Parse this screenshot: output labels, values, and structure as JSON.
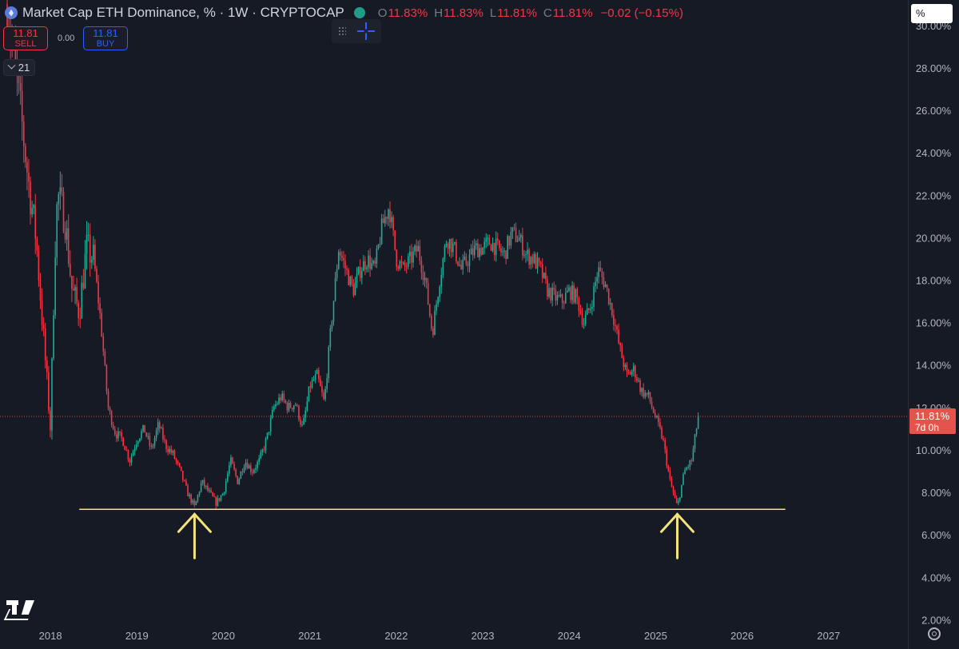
{
  "header": {
    "title": "Market Cap ETH Dominance, % · 1W · CRYPTOCAP",
    "open_label": "O",
    "open": "11.83%",
    "high_label": "H",
    "high": "11.83%",
    "low_label": "L",
    "low": "11.81%",
    "close_label": "C",
    "close": "11.81%",
    "change": "−0.02 (−0.15%)"
  },
  "trade": {
    "sell_price": "11.81",
    "sell_label": "SELL",
    "spread": "0.00",
    "buy_price": "11.81",
    "buy_label": "BUY"
  },
  "indicators_count": "21",
  "axis_unit": "%",
  "last_price_tag": {
    "value": "11.81%",
    "countdown": "7d 0h"
  },
  "colors": {
    "background": "#161a25",
    "up": "#22ab94",
    "down": "#f23645",
    "annotation": "#f5e47a",
    "last_price": "#e5544c",
    "text": "#b2b5be"
  },
  "icons": {
    "symbol": "ethereum-icon",
    "status": "market-status-icon",
    "toolbar": "crosshair-icon",
    "logo": "tradingview-logo",
    "settings": "gear-icon"
  },
  "chart_data": {
    "type": "candlestick",
    "timeframe": "1W",
    "x_axis": {
      "labels": [
        "2018",
        "2019",
        "2020",
        "2021",
        "2022",
        "2023",
        "2024",
        "2025",
        "2026",
        "2027"
      ],
      "range": [
        "2017-06",
        "2027-12"
      ]
    },
    "y_axis": {
      "unit": "%",
      "ticks": [
        2,
        4,
        6,
        8,
        10,
        12,
        14,
        16,
        18,
        20,
        22,
        24,
        26,
        28,
        30
      ],
      "tick_labels": [
        "2.00%",
        "4.00%",
        "6.00%",
        "8.00%",
        "10.00%",
        "12.00%",
        "14.00%",
        "16.00%",
        "18.00%",
        "20.00%",
        "22.00%",
        "24.00%",
        "26.00%",
        "28.00%",
        "30.00%"
      ],
      "range": [
        1.6,
        31.2
      ]
    },
    "grid": false,
    "last_value": 11.81,
    "path": [
      [
        "2017-07",
        31.0
      ],
      [
        "2017-09",
        25.5
      ],
      [
        "2017-10",
        22.5
      ],
      [
        "2017-11",
        20.0
      ],
      [
        "2017-12",
        15.5
      ],
      [
        "2018-01",
        11.0
      ],
      [
        "2018-01-20",
        19.5
      ],
      [
        "2018-02",
        22.0
      ],
      [
        "2018-03",
        21.0
      ],
      [
        "2018-04",
        17.5
      ],
      [
        "2018-05",
        16.5
      ],
      [
        "2018-06",
        19.5
      ],
      [
        "2018-07",
        19.0
      ],
      [
        "2018-08",
        16.0
      ],
      [
        "2018-09",
        12.0
      ],
      [
        "2018-10",
        10.8
      ],
      [
        "2018-11",
        10.5
      ],
      [
        "2018-12",
        9.5
      ],
      [
        "2019-01",
        10.5
      ],
      [
        "2019-02",
        11.0
      ],
      [
        "2019-03",
        10.0
      ],
      [
        "2019-04",
        11.2
      ],
      [
        "2019-05",
        10.2
      ],
      [
        "2019-06",
        9.8
      ],
      [
        "2019-07",
        9.0
      ],
      [
        "2019-08",
        8.0
      ],
      [
        "2019-09",
        7.3
      ],
      [
        "2019-10",
        8.5
      ],
      [
        "2019-11",
        8.0
      ],
      [
        "2019-12",
        7.5
      ],
      [
        "2020-01",
        8.0
      ],
      [
        "2020-02",
        9.5
      ],
      [
        "2020-03",
        8.5
      ],
      [
        "2020-04",
        9.5
      ],
      [
        "2020-05",
        9.0
      ],
      [
        "2020-06",
        9.5
      ],
      [
        "2020-07",
        10.5
      ],
      [
        "2020-08",
        12.0
      ],
      [
        "2020-09",
        12.5
      ],
      [
        "2020-10",
        12.0
      ],
      [
        "2020-11",
        12.2
      ],
      [
        "2020-12",
        11.0
      ],
      [
        "2021-01",
        13.0
      ],
      [
        "2021-02",
        13.5
      ],
      [
        "2021-03",
        12.2
      ],
      [
        "2021-04",
        16.0
      ],
      [
        "2021-05",
        19.5
      ],
      [
        "2021-06",
        18.5
      ],
      [
        "2021-07",
        17.5
      ],
      [
        "2021-08",
        18.5
      ],
      [
        "2021-09",
        19.0
      ],
      [
        "2021-10",
        18.5
      ],
      [
        "2021-11",
        20.5
      ],
      [
        "2021-12",
        21.5
      ],
      [
        "2022-01",
        19.0
      ],
      [
        "2022-02",
        18.5
      ],
      [
        "2022-03",
        19.0
      ],
      [
        "2022-04",
        19.5
      ],
      [
        "2022-05",
        18.0
      ],
      [
        "2022-06",
        15.5
      ],
      [
        "2022-07",
        18.0
      ],
      [
        "2022-08",
        20.0
      ],
      [
        "2022-09",
        19.5
      ],
      [
        "2022-10",
        18.5
      ],
      [
        "2022-11",
        19.0
      ],
      [
        "2022-12",
        19.5
      ],
      [
        "2023-01",
        19.5
      ],
      [
        "2023-02",
        19.8
      ],
      [
        "2023-03",
        19.5
      ],
      [
        "2023-04",
        19.2
      ],
      [
        "2023-05",
        20.2
      ],
      [
        "2023-06",
        20.0
      ],
      [
        "2023-07",
        19.2
      ],
      [
        "2023-08",
        19.0
      ],
      [
        "2023-09",
        18.5
      ],
      [
        "2023-10",
        17.5
      ],
      [
        "2023-11",
        17.2
      ],
      [
        "2023-12",
        17.0
      ],
      [
        "2024-01",
        17.5
      ],
      [
        "2024-02",
        17.2
      ],
      [
        "2024-03",
        16.0
      ],
      [
        "2024-04",
        16.8
      ],
      [
        "2024-05",
        18.5
      ],
      [
        "2024-06",
        17.8
      ],
      [
        "2024-07",
        16.5
      ],
      [
        "2024-08",
        14.8
      ],
      [
        "2024-09",
        13.5
      ],
      [
        "2024-10",
        13.8
      ],
      [
        "2024-11",
        12.8
      ],
      [
        "2024-12",
        12.5
      ],
      [
        "2025-01",
        11.5
      ],
      [
        "2025-02",
        10.5
      ],
      [
        "2025-03",
        8.5
      ],
      [
        "2025-04",
        7.3
      ],
      [
        "2025-05",
        9.0
      ],
      [
        "2025-06",
        9.5
      ],
      [
        "2025-07",
        11.81
      ]
    ],
    "annotations": [
      {
        "type": "horizontal_line",
        "value": 7.2,
        "from": "2018-05",
        "to": "2026-07"
      },
      {
        "type": "arrow",
        "direction": "up",
        "date": "2019-09",
        "points_to": 7.2
      },
      {
        "type": "arrow",
        "direction": "up",
        "date": "2025-04",
        "points_to": 7.2
      }
    ]
  }
}
